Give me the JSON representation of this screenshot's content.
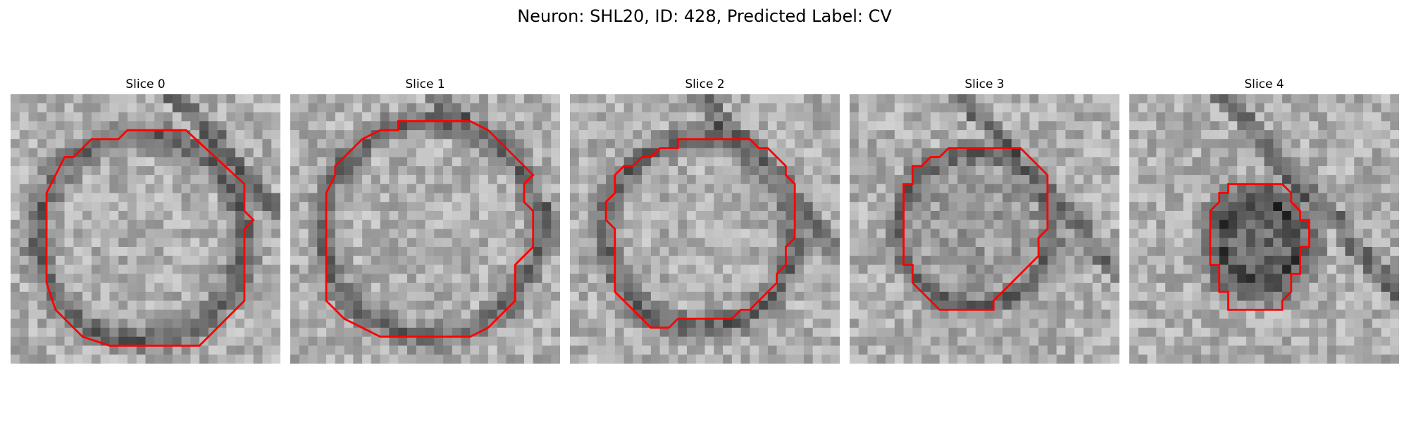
{
  "figure": {
    "title": "Neuron: SHL20, ID: 428, Predicted Label: CV"
  },
  "panels": [
    {
      "title": "Slice 0",
      "image": "grayscale EM crop with red contour of a large round vesicle",
      "contour_color": "#ff0000"
    },
    {
      "title": "Slice 1",
      "image": "grayscale EM crop with red contour of a large round vesicle",
      "contour_color": "#ff0000"
    },
    {
      "title": "Slice 2",
      "image": "grayscale EM crop with red contour of a round vesicle",
      "contour_color": "#ff0000"
    },
    {
      "title": "Slice 3",
      "image": "grayscale EM crop with red contour of a smaller vesicle",
      "contour_color": "#ff0000"
    },
    {
      "title": "Slice 4",
      "image": "grayscale EM crop with red contour of a small dark vesicle",
      "contour_color": "#ff0000"
    }
  ]
}
